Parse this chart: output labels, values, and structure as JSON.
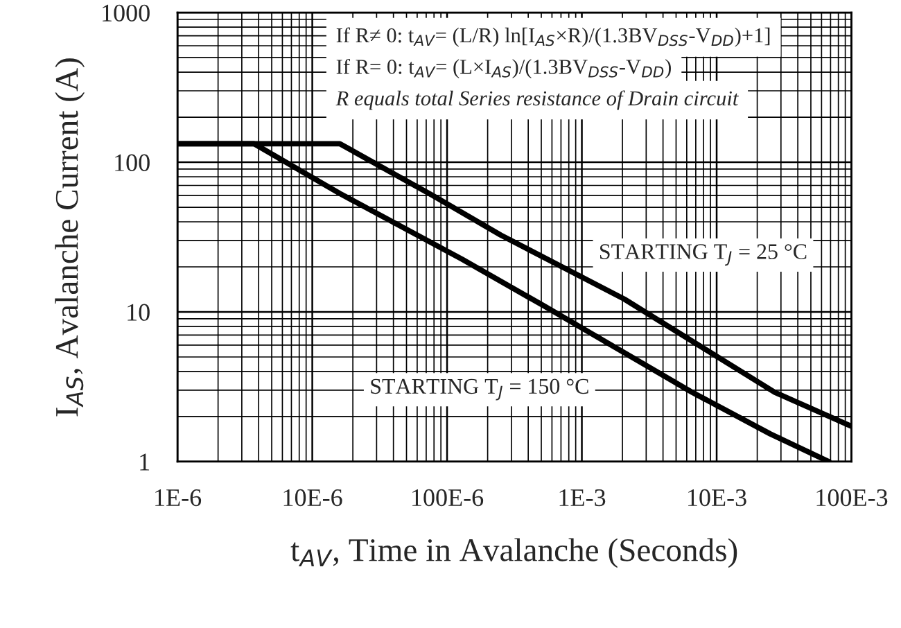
{
  "chart_data": {
    "type": "line",
    "xlabel": "t$_{AV}$, Time in Avalanche (Seconds)",
    "ylabel": "I$_{AS}$, Avalanche Current (A)",
    "log": "xy",
    "xlim": [
      1e-06,
      0.1
    ],
    "xticks": [
      {
        "value": 1e-06,
        "label": "1E-6"
      },
      {
        "value": 1e-05,
        "label": "10E-6"
      },
      {
        "value": 0.0001,
        "label": "100E-6"
      },
      {
        "value": 0.001,
        "label": "1E-3"
      },
      {
        "value": 0.01,
        "label": "10E-3"
      },
      {
        "value": 0.1,
        "label": "100E-3"
      }
    ],
    "ylim": [
      1,
      1000
    ],
    "yticks": [
      1,
      10,
      100,
      1000
    ],
    "grid": true,
    "line_style": "solid",
    "marker": "none",
    "series": [
      {
        "name": "STARTING T$_{J}$ = 25 °C",
        "color": "#000000",
        "x": [
          1e-06,
          1.6e-05,
          7.8e-05,
          0.00025,
          0.00206,
          0.027,
          0.1
        ],
        "values": [
          133,
          133,
          60,
          32.6,
          12.2,
          2.9,
          1.72
        ]
      },
      {
        "name": "STARTING T$_{J}$ = 150 °C",
        "color": "#000000",
        "x": [
          1e-06,
          3.7e-06,
          1.6e-05,
          0.000129,
          0.00053,
          0.0066,
          0.025,
          0.068
        ],
        "values": [
          133,
          133,
          61.8,
          22.5,
          10.9,
          2.9,
          1.53,
          1
        ]
      }
    ],
    "annotations": [
      "If R≠ 0: t$_{AV}$= (L/R) ln[I$_{AS}$×R)/(1.3BV$_{DSS}$-V$_{DD}$)+1]",
      "If R= 0: t$_{AV}$= (L×I$_{AS}$)/(1.3BV$_{DSS}$-V$_{DD}$)",
      "R equals total Series resistance of Drain circuit"
    ]
  }
}
